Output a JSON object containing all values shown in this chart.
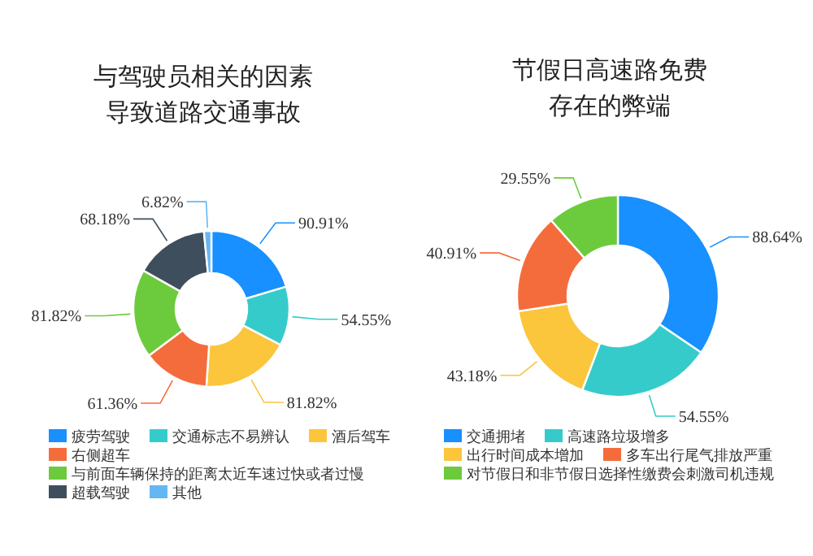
{
  "chart_data": [
    {
      "type": "donut",
      "title": "与驾驶员相关的因素导致道路交通事故",
      "legend": "bottom",
      "categories": [
        "疲劳驾驶",
        "交通标志不易辨认",
        "酒后驾车",
        "右侧超车",
        "与前面车辆保持的距离太近车速过快或者过慢",
        "超载驾驶",
        "其他"
      ],
      "values": [
        90.91,
        54.55,
        81.82,
        61.36,
        81.82,
        68.18,
        6.82
      ],
      "value_labels": [
        "90.91%",
        "54.55%",
        "81.82%",
        "61.36%",
        "81.82%",
        "68.18%",
        "6.82%"
      ],
      "colors": [
        "#1890ff",
        "#36cbcb",
        "#fbc53c",
        "#f56c3c",
        "#6ccb3c",
        "#3f4e5c",
        "#65b7f3"
      ]
    },
    {
      "type": "donut",
      "title": "节假日高速路免费存在的弊端",
      "legend": "bottom",
      "categories": [
        "交通拥堵",
        "高速路垃圾增多",
        "出行时间成本增加",
        "多车出行尾气排放严重",
        "对节假日和非节假日选择性缴费会刺激司机违规"
      ],
      "values": [
        88.64,
        54.55,
        43.18,
        40.91,
        29.55
      ],
      "value_labels": [
        "88.64%",
        "54.55%",
        "43.18%",
        "40.91%",
        "29.55%"
      ],
      "colors": [
        "#1890ff",
        "#36cbcb",
        "#fbc53c",
        "#f56c3c",
        "#6ccb3c"
      ]
    }
  ]
}
